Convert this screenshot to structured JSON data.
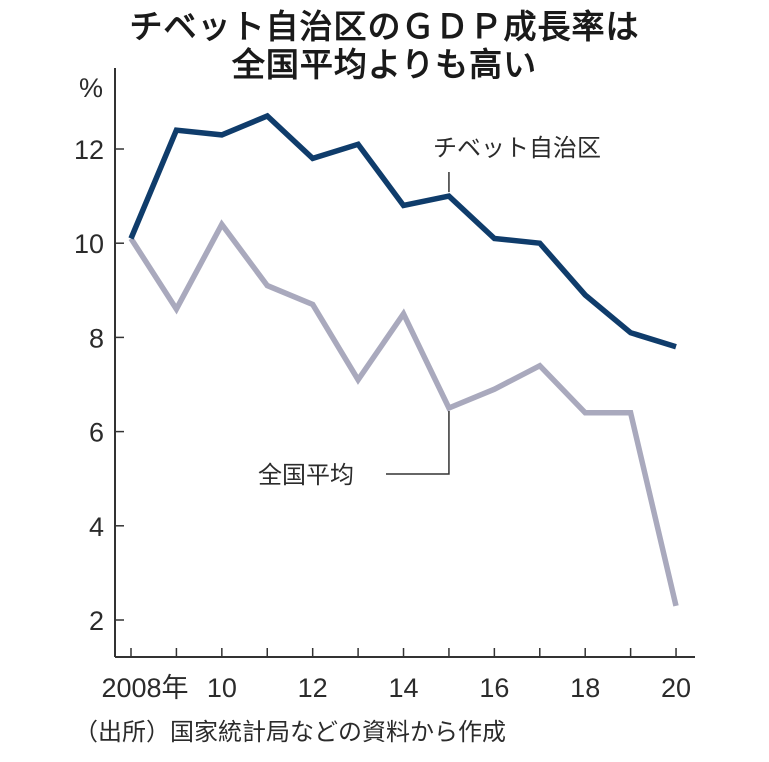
{
  "chart_data": {
    "type": "line",
    "title": "チベット自治区のＧＤＰ成長率は全国平均よりも高い",
    "title_lines": [
      "チベット自治区のＧＤＰ成長率は",
      "全国平均よりも高い"
    ],
    "ylabel": "%",
    "xlabel": "",
    "x": [
      2008,
      2009,
      2010,
      2011,
      2012,
      2013,
      2014,
      2015,
      2016,
      2017,
      2018,
      2019,
      2020
    ],
    "xtick_values": [
      2008,
      2010,
      2012,
      2014,
      2016,
      2018,
      2020
    ],
    "xtick_labels": [
      "2008年",
      "10",
      "12",
      "14",
      "16",
      "18",
      "20"
    ],
    "ytick_values": [
      2,
      4,
      6,
      8,
      10,
      12
    ],
    "ytick_labels": [
      "2",
      "4",
      "6",
      "8",
      "10",
      "12"
    ],
    "ylim": [
      1.2,
      13.8
    ],
    "xlim": [
      2007.65,
      2020.4
    ],
    "grid": false,
    "legend": "inline-labels",
    "series": [
      {
        "name": "チベット自治区",
        "color": "#0f3c6b",
        "values": [
          10.1,
          12.4,
          12.3,
          12.7,
          11.8,
          12.1,
          10.8,
          11.0,
          10.1,
          10.0,
          8.9,
          8.1,
          7.8
        ],
        "label_anchor_year": 2015
      },
      {
        "name": "全国平均",
        "color": "#a9a9bd",
        "values": [
          10.1,
          8.6,
          10.4,
          9.1,
          8.7,
          7.1,
          8.5,
          6.5,
          6.9,
          7.4,
          6.4,
          6.4,
          2.3
        ],
        "label_anchor_year": 2015
      }
    ],
    "source": "（出所）国家統計局などの資料から作成"
  }
}
